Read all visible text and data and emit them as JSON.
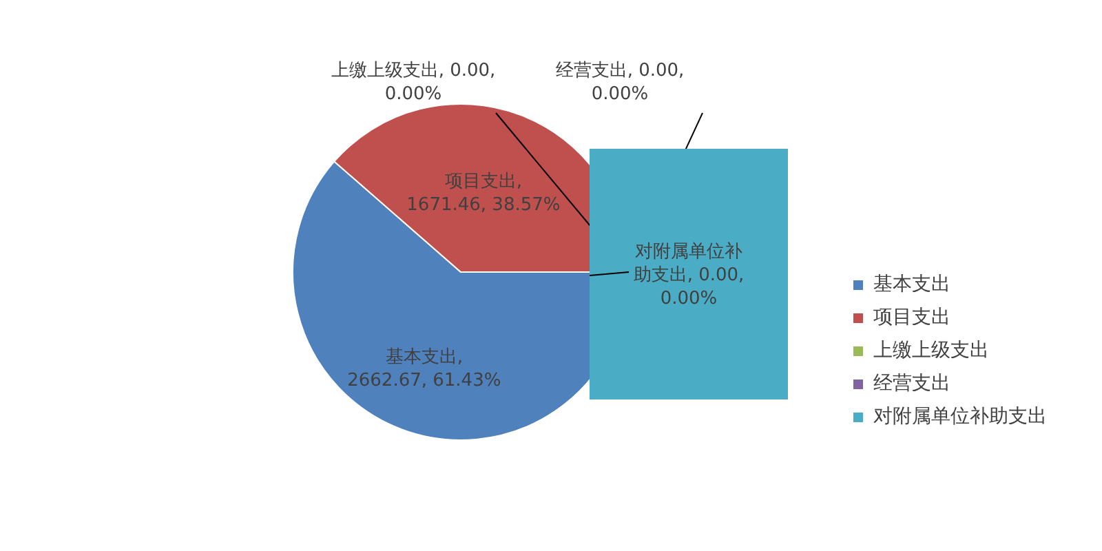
{
  "chart_data": {
    "type": "pie",
    "categories": [
      "基本支出",
      "项目支出",
      "上缴上级支出",
      "经营支出",
      "对附属单位补助支出"
    ],
    "values": [
      2662.67,
      1671.46,
      0,
      0,
      0
    ],
    "colors": [
      "#4f81bd",
      "#c0504d",
      "#9bbb59",
      "#8064a2",
      "#4bacc6"
    ],
    "value_labels": [
      "基本支出, 2662.67, 61.43%",
      "项目支出, 1671.46, 38.57%",
      "上缴上级支出, 0.00, 0.00%",
      "经营支出, 0.00, 0.00%",
      "对附属单位补助支出, 0.00, 0.00%"
    ],
    "legend": "right"
  }
}
